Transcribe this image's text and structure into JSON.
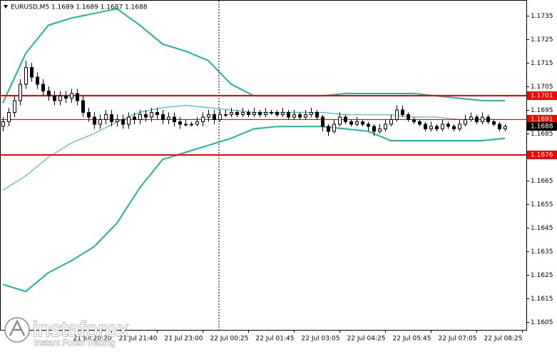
{
  "chart_data": {
    "type": "candlestick",
    "title": "EURUSD,M5  1.1689 1.1689 1.1687 1.1688",
    "ohlc": [
      [
        1.1688,
        1.1692,
        1.1686,
        1.169
      ],
      [
        1.169,
        1.1696,
        1.1688,
        1.1694
      ],
      [
        1.1694,
        1.1701,
        1.1692,
        1.1699
      ],
      [
        1.1699,
        1.1708,
        1.1697,
        1.1706
      ],
      [
        1.1706,
        1.1716,
        1.1704,
        1.1713
      ],
      [
        1.1713,
        1.1715,
        1.1707,
        1.1709
      ],
      [
        1.1709,
        1.1711,
        1.1704,
        1.1706
      ],
      [
        1.1706,
        1.1708,
        1.1701,
        1.1703
      ],
      [
        1.1703,
        1.1705,
        1.1699,
        1.1701
      ],
      [
        1.1701,
        1.1703,
        1.1697,
        1.1699
      ],
      [
        1.1699,
        1.1703,
        1.1697,
        1.1701
      ],
      [
        1.1701,
        1.1703,
        1.1698,
        1.17
      ],
      [
        1.17,
        1.1704,
        1.1698,
        1.1702
      ],
      [
        1.1702,
        1.1704,
        1.1697,
        1.1699
      ],
      [
        1.1699,
        1.1701,
        1.1692,
        1.1694
      ],
      [
        1.1694,
        1.1696,
        1.169,
        1.1692
      ],
      [
        1.1692,
        1.1694,
        1.1687,
        1.1689
      ],
      [
        1.1689,
        1.1693,
        1.1687,
        1.1691
      ],
      [
        1.1691,
        1.1695,
        1.1689,
        1.1693
      ],
      [
        1.1693,
        1.1695,
        1.1688,
        1.169
      ],
      [
        1.169,
        1.1693,
        1.1688,
        1.1691
      ],
      [
        1.1691,
        1.1693,
        1.1687,
        1.1689
      ],
      [
        1.1689,
        1.1694,
        1.1687,
        1.1692
      ],
      [
        1.1692,
        1.1694,
        1.1689,
        1.1691
      ],
      [
        1.1691,
        1.1695,
        1.1689,
        1.1693
      ],
      [
        1.1693,
        1.1695,
        1.169,
        1.1692
      ],
      [
        1.1692,
        1.1696,
        1.169,
        1.1694
      ],
      [
        1.1694,
        1.1696,
        1.1691,
        1.1693
      ],
      [
        1.1693,
        1.1695,
        1.1689,
        1.1691
      ],
      [
        1.1691,
        1.1694,
        1.1689,
        1.1692
      ],
      [
        1.1692,
        1.1694,
        1.1688,
        1.169
      ],
      [
        1.169,
        1.1692,
        1.1687,
        1.1689
      ],
      [
        1.1689,
        1.1691,
        1.1688,
        1.1689
      ],
      [
        1.1689,
        1.169,
        1.1688,
        1.1689
      ],
      [
        1.1689,
        1.1692,
        1.1688,
        1.169
      ],
      [
        1.169,
        1.1694,
        1.1688,
        1.1692
      ],
      [
        1.1692,
        1.1695,
        1.169,
        1.1693
      ],
      [
        1.1693,
        1.1695,
        1.1689,
        1.1691
      ],
      [
        1.1691,
        1.1695,
        1.169,
        1.1693
      ],
      [
        1.1693,
        1.1695,
        1.1692,
        1.1693
      ],
      [
        1.1693,
        1.1696,
        1.1692,
        1.1694
      ],
      [
        1.1694,
        1.1695,
        1.1692,
        1.1693
      ],
      [
        1.1693,
        1.1696,
        1.1692,
        1.1694
      ],
      [
        1.1694,
        1.1695,
        1.1692,
        1.1693
      ],
      [
        1.1693,
        1.1696,
        1.1692,
        1.1694
      ],
      [
        1.1694,
        1.1695,
        1.1692,
        1.1693
      ],
      [
        1.1693,
        1.1696,
        1.1692,
        1.1694
      ],
      [
        1.1694,
        1.1695,
        1.1693,
        1.1694
      ],
      [
        1.1694,
        1.1695,
        1.1692,
        1.1693
      ],
      [
        1.1693,
        1.1696,
        1.1692,
        1.1694
      ],
      [
        1.1694,
        1.1695,
        1.1691,
        1.1692
      ],
      [
        1.1692,
        1.1695,
        1.1691,
        1.1693
      ],
      [
        1.1693,
        1.1694,
        1.1691,
        1.1692
      ],
      [
        1.1692,
        1.1695,
        1.1691,
        1.1693
      ],
      [
        1.1693,
        1.1696,
        1.1692,
        1.1694
      ],
      [
        1.1694,
        1.1695,
        1.1691,
        1.1692
      ],
      [
        1.1692,
        1.1693,
        1.1686,
        1.1688
      ],
      [
        1.1688,
        1.1689,
        1.1684,
        1.1686
      ],
      [
        1.1686,
        1.1691,
        1.1685,
        1.1689
      ],
      [
        1.1689,
        1.1694,
        1.1688,
        1.1692
      ],
      [
        1.1692,
        1.1693,
        1.1689,
        1.169
      ],
      [
        1.169,
        1.1691,
        1.1688,
        1.1689
      ],
      [
        1.1689,
        1.1692,
        1.1688,
        1.169
      ],
      [
        1.169,
        1.1691,
        1.1688,
        1.1689
      ],
      [
        1.1689,
        1.169,
        1.1686,
        1.1688
      ],
      [
        1.1688,
        1.1689,
        1.1684,
        1.1686
      ],
      [
        1.1686,
        1.1689,
        1.1685,
        1.1687
      ],
      [
        1.1687,
        1.1691,
        1.1686,
        1.1689
      ],
      [
        1.1689,
        1.1693,
        1.1688,
        1.1691
      ],
      [
        1.1691,
        1.1697,
        1.169,
        1.1695
      ],
      [
        1.1695,
        1.1697,
        1.1692,
        1.1693
      ],
      [
        1.1693,
        1.1694,
        1.169,
        1.1691
      ],
      [
        1.1691,
        1.1692,
        1.1689,
        1.169
      ],
      [
        1.169,
        1.1691,
        1.1688,
        1.1689
      ],
      [
        1.1689,
        1.169,
        1.1686,
        1.1687
      ],
      [
        1.1687,
        1.169,
        1.1686,
        1.1688
      ],
      [
        1.1688,
        1.1689,
        1.1686,
        1.1687
      ],
      [
        1.1687,
        1.1691,
        1.1686,
        1.1689
      ],
      [
        1.1689,
        1.169,
        1.1687,
        1.1688
      ],
      [
        1.1688,
        1.1689,
        1.1686,
        1.1687
      ],
      [
        1.1687,
        1.1691,
        1.1686,
        1.1689
      ],
      [
        1.1689,
        1.1693,
        1.1688,
        1.1691
      ],
      [
        1.1691,
        1.1694,
        1.169,
        1.1692
      ],
      [
        1.1692,
        1.1693,
        1.1689,
        1.169
      ],
      [
        1.169,
        1.1694,
        1.1689,
        1.1692
      ],
      [
        1.1692,
        1.1693,
        1.1689,
        1.169
      ],
      [
        1.169,
        1.1691,
        1.1688,
        1.1689
      ],
      [
        1.1689,
        1.169,
        1.1686,
        1.1687
      ],
      [
        1.1687,
        1.1689,
        1.1686,
        1.1688
      ]
    ],
    "indicators": [
      {
        "color": "#20b2a0",
        "line_width": 2,
        "x": [
          0,
          4,
          8,
          12,
          16,
          20,
          24,
          28,
          32,
          36,
          40,
          44,
          48,
          52,
          56,
          60,
          64,
          68,
          72,
          76,
          80,
          84,
          88
        ],
        "values": [
          1.1698,
          1.1719,
          1.1731,
          1.1734,
          1.1736,
          1.1738,
          1.1731,
          1.1723,
          1.172,
          1.1716,
          1.1706,
          1.1701,
          1.1701,
          1.1701,
          1.1701,
          1.1702,
          1.1702,
          1.1702,
          1.1702,
          1.1701,
          1.17,
          1.1699,
          1.1699
        ]
      },
      {
        "color": "#20b2a0",
        "line_width": 1,
        "x": [
          0,
          4,
          8,
          12,
          16,
          20,
          24,
          28,
          32,
          36,
          40,
          44,
          48,
          52,
          56,
          60,
          64,
          68,
          72,
          76,
          80,
          84,
          88
        ],
        "values": [
          1.1661,
          1.1667,
          1.1675,
          1.1681,
          1.1685,
          1.169,
          1.1694,
          1.1696,
          1.1697,
          1.1696,
          1.1695,
          1.1694,
          1.1694,
          1.1694,
          1.1694,
          1.1693,
          1.1693,
          1.1693,
          1.1692,
          1.1692,
          1.1691,
          1.1691,
          1.1691
        ]
      },
      {
        "color": "#20b2a0",
        "line_width": 2,
        "x": [
          0,
          4,
          8,
          12,
          16,
          20,
          24,
          28,
          32,
          36,
          40,
          44,
          48,
          52,
          56,
          60,
          64,
          68,
          72,
          76,
          80,
          84,
          88
        ],
        "values": [
          1.1621,
          1.1618,
          1.1626,
          1.1631,
          1.1637,
          1.1647,
          1.1662,
          1.1674,
          1.1677,
          1.168,
          1.1683,
          1.1687,
          1.1688,
          1.1688,
          1.1688,
          1.1687,
          1.1686,
          1.1682,
          1.1682,
          1.1682,
          1.1682,
          1.1682,
          1.1683
        ]
      }
    ],
    "levels": [
      1.1701,
      1.1676
    ],
    "level_color": "#ff0000",
    "ask": 1.1691,
    "bid": 1.1688,
    "xlim": [
      -0.5,
      91.75
    ],
    "xticks": [
      {
        "value": 19,
        "label": "21 Jul 20:20"
      },
      {
        "value": 27,
        "label": "21 Jul 21:40"
      },
      {
        "value": 35,
        "label": "21 Jul 23:00"
      },
      {
        "value": 43,
        "label": "22 Jul 00:25"
      },
      {
        "value": 51,
        "label": "22 Jul 01:45"
      },
      {
        "value": 59,
        "label": "22 Jul 03:05"
      },
      {
        "value": 67,
        "label": "22 Jul 04:25"
      },
      {
        "value": 75,
        "label": "22 Jul 05:45"
      },
      {
        "value": 83,
        "label": "22 Jul 07:05"
      },
      {
        "value": 91,
        "label": "22 Jul 08:25"
      }
    ],
    "ylim": [
      1.16017,
      1.17417
    ],
    "yticks": [
      1.1735,
      1.1725,
      1.1715,
      1.1705,
      1.1695,
      1.1685,
      1.1675,
      1.1665,
      1.1655,
      1.1645,
      1.1635,
      1.1625,
      1.1615,
      1.1605
    ]
  },
  "watermark": {
    "brand": "instaforex",
    "tagline": "Instant Forex Trading"
  }
}
